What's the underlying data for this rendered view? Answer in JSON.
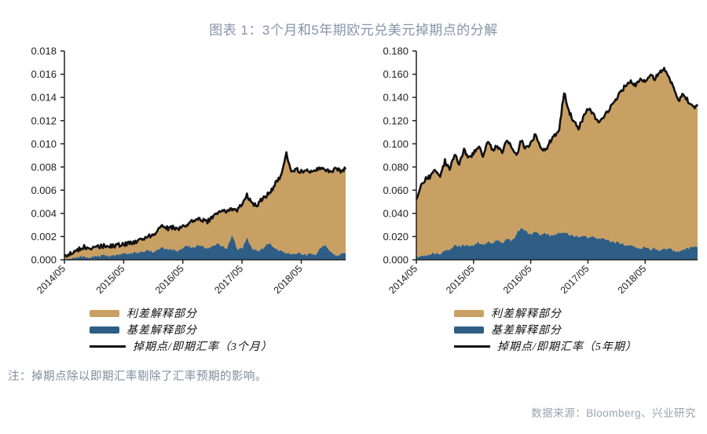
{
  "title": "图表 1：3个月和5年期欧元兑美元掉期点的分解",
  "note": "注：掉期点除以即期汇率剔除了汇率预期的影响。",
  "source": "数据来源：Bloomberg、兴业研究",
  "colors": {
    "tan": "#C9A063",
    "blue": "#2E5E86",
    "line": "#111111",
    "title": "#8694A8",
    "note": "#7E8C9E",
    "source": "#9AA2AC",
    "axis": "#222222"
  },
  "chart_data": [
    {
      "type": "area",
      "id": "eurusd-3m-swap-decomposition",
      "title": "3个月欧元兑美元掉期点的分解",
      "stacking": "stacked: basis (blue) + spread (tan) = total; black line = total (swap point / spot)",
      "ylim": [
        0,
        0.018
      ],
      "grid": false,
      "y_tick_labels": [
        "0.000",
        "0.002",
        "0.004",
        "0.006",
        "0.008",
        "0.010",
        "0.012",
        "0.014",
        "0.016",
        "0.018"
      ],
      "x_tick_labels": [
        "2014/05",
        "2015/05",
        "2016/05",
        "2017/05",
        "2018/05"
      ],
      "x_tick_month_indices": [
        0,
        12,
        24,
        36,
        48
      ],
      "x_frequency": "monthly from 2014/05",
      "legend_position": "below-left",
      "legend": [
        {
          "label": "利差解释部分",
          "swatch": "tan"
        },
        {
          "label": "基差解释部分",
          "swatch": "blue"
        },
        {
          "label": "掉期点/即期汇率（3个月）",
          "swatch": "line"
        }
      ],
      "series": {
        "total": [
          0.0003,
          0.0005,
          0.0006,
          0.0009,
          0.0011,
          0.0009,
          0.001,
          0.0011,
          0.0012,
          0.0011,
          0.0012,
          0.0013,
          0.0013,
          0.0014,
          0.0015,
          0.0016,
          0.0018,
          0.002,
          0.0022,
          0.0026,
          0.003,
          0.0027,
          0.0028,
          0.0026,
          0.0028,
          0.0031,
          0.0034,
          0.0036,
          0.0034,
          0.0033,
          0.0037,
          0.004,
          0.0043,
          0.0041,
          0.0044,
          0.0043,
          0.0048,
          0.0056,
          0.0049,
          0.0047,
          0.0052,
          0.0056,
          0.006,
          0.0068,
          0.0073,
          0.0091,
          0.0076,
          0.0078,
          0.0076,
          0.0077,
          0.0075,
          0.0078,
          0.008,
          0.0077,
          0.0076,
          0.0078,
          0.0077,
          0.0078
        ],
        "basis": [
          0.0001,
          0.0001,
          0.0002,
          0.0003,
          0.0003,
          0.0002,
          0.0003,
          0.0003,
          0.0004,
          0.0003,
          0.0004,
          0.0004,
          0.0005,
          0.0005,
          0.0006,
          0.0006,
          0.0007,
          0.0008,
          0.0007,
          0.0009,
          0.0011,
          0.0008,
          0.0009,
          0.0008,
          0.001,
          0.0012,
          0.001,
          0.0013,
          0.0011,
          0.001,
          0.0012,
          0.0014,
          0.0012,
          0.001,
          0.0022,
          0.0009,
          0.001,
          0.0019,
          0.001,
          0.0008,
          0.0009,
          0.0014,
          0.0013,
          0.0009,
          0.0007,
          0.0006,
          0.0005,
          0.0006,
          0.0005,
          0.0004,
          0.0005,
          0.0004,
          0.0011,
          0.0013,
          0.0006,
          0.0004,
          0.0005,
          0.0006
        ]
      }
    },
    {
      "type": "area",
      "id": "eurusd-5y-swap-decomposition",
      "title": "5年期欧元兑美元掉期点的分解",
      "stacking": "stacked: basis (blue) + spread (tan) = total; black line = total (swap point / spot)",
      "ylim": [
        0,
        0.18
      ],
      "grid": false,
      "y_tick_labels": [
        "0.000",
        "0.020",
        "0.040",
        "0.060",
        "0.080",
        "0.100",
        "0.120",
        "0.140",
        "0.160",
        "0.180"
      ],
      "x_tick_labels": [
        "2014/05",
        "2015/05",
        "2016/05",
        "2017/05",
        "2018/05"
      ],
      "x_tick_month_indices": [
        0,
        12,
        24,
        36,
        48
      ],
      "x_frequency": "monthly from 2014/05",
      "legend_position": "below-left",
      "legend": [
        {
          "label": "利差解释部分",
          "swatch": "tan"
        },
        {
          "label": "基差解释部分",
          "swatch": "blue"
        },
        {
          "label": "掉期点/即期汇率（5年期）",
          "swatch": "line"
        }
      ],
      "series": {
        "total": [
          0.052,
          0.065,
          0.07,
          0.072,
          0.078,
          0.072,
          0.085,
          0.078,
          0.09,
          0.083,
          0.095,
          0.088,
          0.092,
          0.098,
          0.09,
          0.103,
          0.095,
          0.098,
          0.093,
          0.104,
          0.096,
          0.09,
          0.103,
          0.096,
          0.1,
          0.108,
          0.098,
          0.093,
          0.102,
          0.107,
          0.113,
          0.145,
          0.128,
          0.12,
          0.113,
          0.123,
          0.131,
          0.126,
          0.119,
          0.121,
          0.127,
          0.133,
          0.139,
          0.145,
          0.151,
          0.155,
          0.149,
          0.157,
          0.154,
          0.159,
          0.156,
          0.161,
          0.165,
          0.158,
          0.147,
          0.136,
          0.143,
          0.137,
          0.131,
          0.134
        ],
        "basis": [
          0.002,
          0.003,
          0.004,
          0.005,
          0.006,
          0.005,
          0.008,
          0.009,
          0.012,
          0.011,
          0.013,
          0.012,
          0.013,
          0.015,
          0.013,
          0.016,
          0.014,
          0.017,
          0.015,
          0.018,
          0.016,
          0.022,
          0.028,
          0.024,
          0.022,
          0.024,
          0.022,
          0.023,
          0.021,
          0.022,
          0.023,
          0.024,
          0.022,
          0.021,
          0.02,
          0.021,
          0.019,
          0.02,
          0.018,
          0.019,
          0.017,
          0.016,
          0.015,
          0.014,
          0.012,
          0.013,
          0.011,
          0.01,
          0.011,
          0.009,
          0.01,
          0.008,
          0.009,
          0.01,
          0.008,
          0.007,
          0.009,
          0.01,
          0.011,
          0.012
        ]
      }
    }
  ]
}
